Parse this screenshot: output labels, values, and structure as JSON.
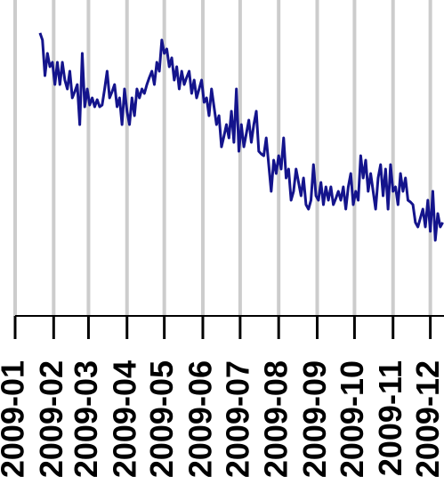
{
  "chart_data": {
    "type": "line",
    "x": [
      21,
      23,
      25,
      27,
      29,
      31,
      33,
      35,
      37,
      39,
      41,
      43,
      45,
      47,
      49,
      51,
      53,
      55,
      57,
      59,
      61,
      63,
      65,
      67,
      69,
      71,
      73,
      75,
      77,
      79,
      81,
      83,
      85,
      87,
      89,
      91,
      93,
      95,
      97,
      99,
      101,
      103,
      105,
      107,
      109,
      111,
      113,
      115,
      117,
      119,
      121,
      123,
      125,
      127,
      129,
      131,
      133,
      135,
      137,
      139,
      141,
      143,
      145,
      147,
      149,
      151,
      153,
      155,
      157,
      159,
      161,
      163,
      165,
      167,
      169,
      171,
      173,
      175,
      177,
      179,
      181,
      183,
      185,
      187,
      189,
      191,
      193,
      195,
      197,
      199,
      201,
      203,
      205,
      207,
      209,
      211,
      213,
      215,
      217,
      219,
      221,
      223,
      225,
      227,
      229,
      231,
      233,
      235,
      237,
      239,
      241,
      243,
      245,
      247,
      249,
      251,
      253,
      255,
      257,
      259,
      261,
      263,
      265,
      267,
      269,
      271,
      273,
      275,
      277,
      279,
      281,
      283,
      285,
      287,
      289,
      291,
      293,
      295,
      297,
      299,
      301,
      303,
      305,
      307,
      309,
      311,
      313,
      315,
      317,
      319,
      321,
      323,
      325,
      327,
      329,
      331,
      333,
      335,
      337,
      339,
      341,
      343,
      345
    ],
    "values": [
      318,
      310,
      270,
      295,
      280,
      285,
      260,
      285,
      260,
      285,
      265,
      255,
      275,
      245,
      252,
      260,
      215,
      295,
      235,
      255,
      237,
      245,
      235,
      243,
      235,
      237,
      255,
      275,
      245,
      252,
      260,
      235,
      245,
      215,
      255,
      230,
      215,
      245,
      225,
      255,
      245,
      255,
      250,
      260,
      268,
      275,
      260,
      285,
      275,
      310,
      295,
      300,
      280,
      290,
      265,
      280,
      255,
      275,
      260,
      268,
      275,
      250,
      265,
      245,
      255,
      265,
      240,
      245,
      225,
      255,
      235,
      215,
      225,
      190,
      202,
      215,
      200,
      230,
      195,
      255,
      185,
      215,
      190,
      205,
      220,
      195,
      215,
      230,
      185,
      182,
      180,
      200,
      170,
      140,
      175,
      160,
      180,
      165,
      200,
      155,
      165,
      130,
      140,
      165,
      150,
      135,
      155,
      125,
      120,
      130,
      170,
      135,
      130,
      150,
      125,
      145,
      130,
      145,
      125,
      132,
      140,
      130,
      145,
      120,
      145,
      160,
      125,
      140,
      130,
      180,
      155,
      175,
      140,
      160,
      140,
      120,
      155,
      170,
      135,
      165,
      120,
      170,
      140,
      145,
      125,
      160,
      140,
      155,
      130,
      128,
      125,
      105,
      100,
      110,
      120,
      100,
      130,
      95,
      140,
      85,
      115,
      100,
      105
    ],
    "color": "#14148c",
    "xlim": [
      1,
      346
    ],
    "ylim": [
      0,
      335
    ],
    "xticks": [
      {
        "value": 1,
        "label": "2009-01"
      },
      {
        "value": 32,
        "label": "2009-02"
      },
      {
        "value": 60,
        "label": "2009-03"
      },
      {
        "value": 91,
        "label": "2009-04"
      },
      {
        "value": 121,
        "label": "2009-05"
      },
      {
        "value": 152,
        "label": "2009-06"
      },
      {
        "value": 182,
        "label": "2009-07"
      },
      {
        "value": 213,
        "label": "2009-08"
      },
      {
        "value": 244,
        "label": "2009-09"
      },
      {
        "value": 274,
        "label": "2009-10"
      },
      {
        "value": 305,
        "label": "2009-11"
      },
      {
        "value": 335,
        "label": "2009-12"
      }
    ],
    "grid": true
  }
}
